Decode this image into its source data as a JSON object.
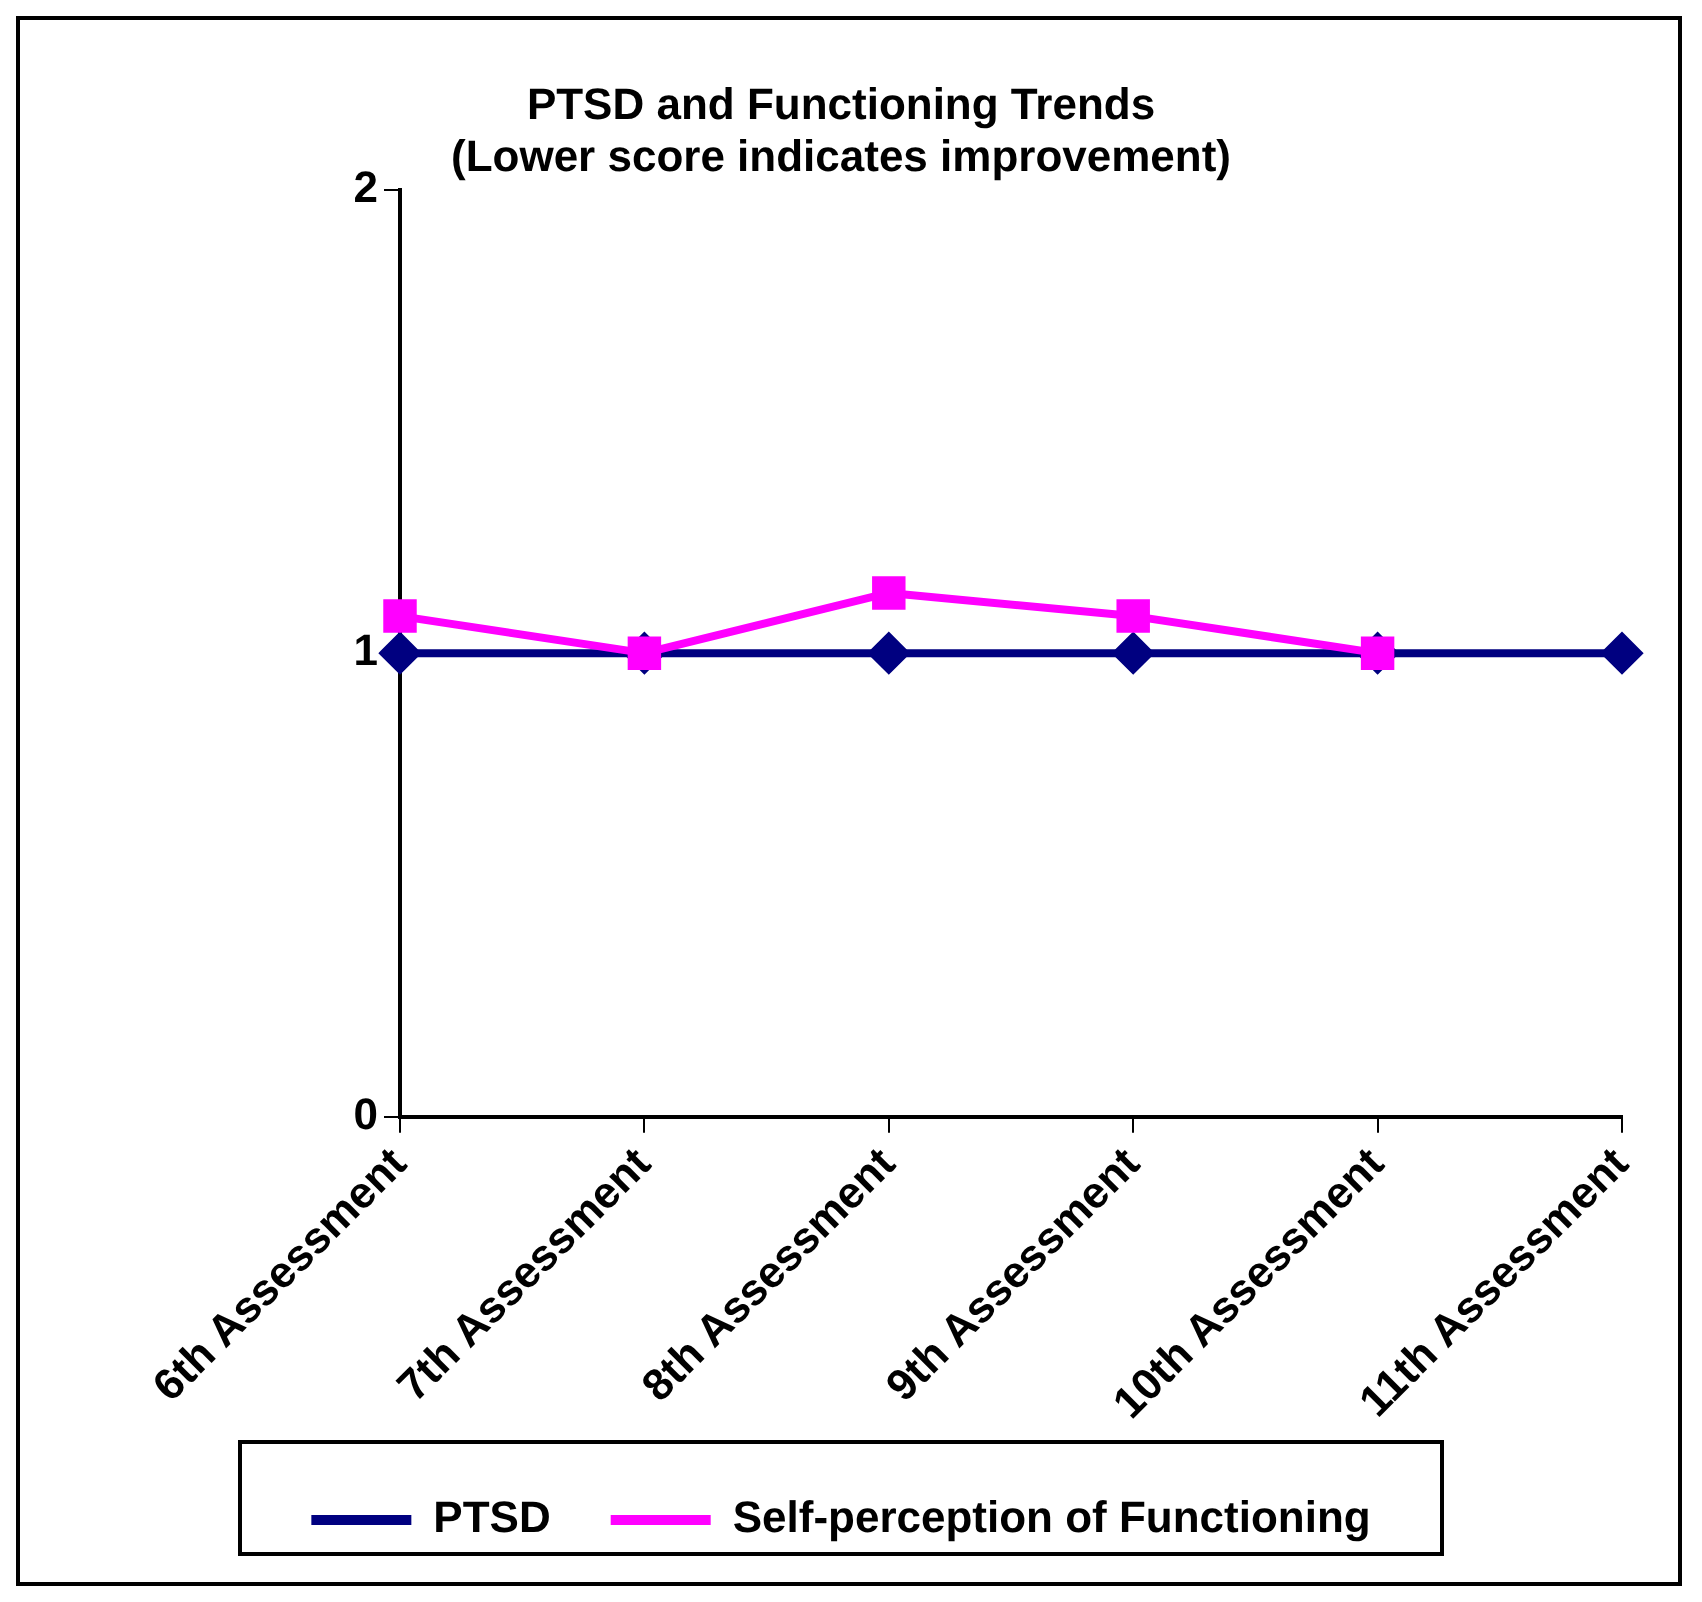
{
  "chart_data": {
    "type": "line",
    "title": [
      "PTSD and Functioning Trends",
      "(Lower score indicates improvement)"
    ],
    "categories": [
      "6th Assessment",
      "7th Assessment",
      "8th Assessment",
      "9th Assessment",
      "10th Assessment",
      "11th Assessment"
    ],
    "series": [
      {
        "name": "PTSD",
        "color": "#000080",
        "marker": "diamond",
        "values": [
          1,
          1,
          1,
          1,
          1,
          1
        ]
      },
      {
        "name": "Self-perception of Functioning",
        "color": "#ff00ff",
        "marker": "square",
        "values": [
          1.08,
          1,
          1.13,
          1.08,
          1,
          null
        ]
      }
    ],
    "ylim": [
      0,
      2
    ],
    "yticks": [
      0,
      1,
      2
    ],
    "grid": false,
    "legend": "bottom",
    "line_style": "solid"
  }
}
